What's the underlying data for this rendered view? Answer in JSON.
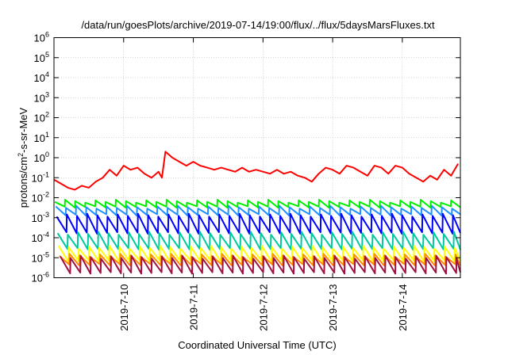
{
  "chart_data": {
    "type": "line",
    "title": "/data/run/goesPlots/archive/2019-07-14/19:00/flux/../flux/5daysMarsFluxes.txt",
    "xlabel": "Coordinated Universal Time (UTC)",
    "ylabel": {
      "prefix": "protons/cm",
      "sup": "2",
      "suffix": "-s-sr-MeV"
    },
    "y_scale": "log",
    "ylim_exp": [
      -6,
      6
    ],
    "y_tick_exponents": [
      -6,
      -5,
      -4,
      -3,
      -2,
      -1,
      0,
      1,
      2,
      3,
      4,
      5,
      6
    ],
    "y_tick_base": "10",
    "x_range_days": [
      "2019-07-09 00:00",
      "2019-07-14 20:00"
    ],
    "x_ticks": [
      {
        "label": "2019-7-10",
        "day": 1
      },
      {
        "label": "2019-7-11",
        "day": 2
      },
      {
        "label": "2019-7-12",
        "day": 3
      },
      {
        "label": "2019-7-13",
        "day": 4
      },
      {
        "label": "2019-7-14",
        "day": 5
      }
    ],
    "grid": true,
    "legend": "none",
    "series": [
      {
        "color": "#ff0000",
        "x_days": [
          0.0,
          0.1,
          0.2,
          0.3,
          0.4,
          0.5,
          0.6,
          0.7,
          0.8,
          0.9,
          1.0,
          1.1,
          1.2,
          1.3,
          1.4,
          1.5,
          1.55,
          1.6,
          1.7,
          1.8,
          1.9,
          2.0,
          2.1,
          2.2,
          2.3,
          2.4,
          2.5,
          2.6,
          2.7,
          2.8,
          2.9,
          3.0,
          3.1,
          3.2,
          3.3,
          3.4,
          3.5,
          3.6,
          3.7,
          3.8,
          3.9,
          4.0,
          4.1,
          4.2,
          4.3,
          4.4,
          4.5,
          4.6,
          4.7,
          4.8,
          4.9,
          5.0,
          5.1,
          5.2,
          5.3,
          5.4,
          5.5,
          5.6,
          5.7,
          5.8
        ],
        "y_log10": [
          -1.1,
          -1.3,
          -1.5,
          -1.6,
          -1.4,
          -1.5,
          -1.2,
          -1.0,
          -0.6,
          -0.9,
          -0.4,
          -0.6,
          -0.5,
          -0.8,
          -1.0,
          -0.7,
          -1.0,
          0.3,
          0.0,
          -0.2,
          -0.4,
          -0.2,
          -0.4,
          -0.5,
          -0.6,
          -0.5,
          -0.6,
          -0.7,
          -0.5,
          -0.7,
          -0.6,
          -0.7,
          -0.8,
          -0.6,
          -0.8,
          -0.7,
          -0.9,
          -1.0,
          -1.2,
          -0.8,
          -0.5,
          -0.6,
          -0.8,
          -0.4,
          -0.5,
          -0.7,
          -0.9,
          -0.4,
          -0.5,
          -0.8,
          -0.4,
          -0.5,
          -0.8,
          -1.0,
          -1.2,
          -0.9,
          -1.1,
          -0.6,
          -0.9,
          -0.3
        ]
      },
      {
        "color": "#00ee00",
        "sawtooth_log10": [
          -2.5,
          -2.1
        ],
        "spikes": [
          [
            3.3,
            -2.0
          ],
          [
            4.8,
            -2.05
          ]
        ]
      },
      {
        "color": "#1e90ff",
        "sawtooth_log10": [
          -2.9,
          -2.4
        ]
      },
      {
        "color": "#0000ff",
        "sawtooth_log10": [
          -3.8,
          -2.8
        ]
      },
      {
        "color": "#00c8a0",
        "sawtooth_log10": [
          -4.6,
          -3.7
        ]
      },
      {
        "color": "#ffff00",
        "sawtooth_log10": [
          -5.2,
          -4.4
        ]
      },
      {
        "color": "#ff8c00",
        "sawtooth_log10": [
          -5.4,
          -4.8
        ]
      },
      {
        "color": "#a01040",
        "sawtooth_log10": [
          -5.8,
          -4.9
        ]
      }
    ]
  }
}
